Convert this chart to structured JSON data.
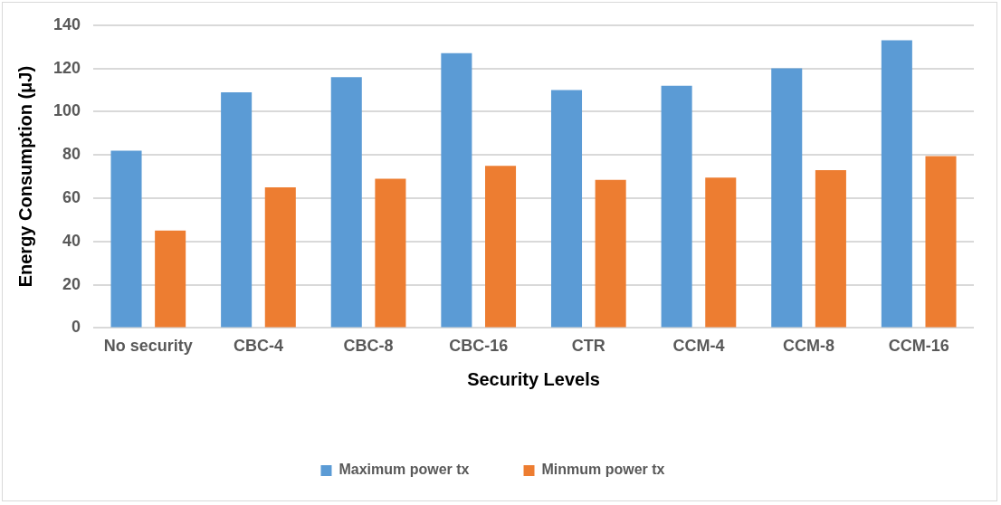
{
  "chart_data": {
    "type": "bar",
    "xlabel": "Security Levels",
    "ylabel": "Energy Consumption (μJ)",
    "categories": [
      "No security",
      "CBC-4",
      "CBC-8",
      "CBC-16",
      "CTR",
      "CCM-4",
      "CCM-8",
      "CCM-16"
    ],
    "series": [
      {
        "name": "Maximum power tx",
        "color": "#5b9bd5",
        "values": [
          82,
          109,
          116,
          127,
          110,
          112,
          120,
          133
        ]
      },
      {
        "name": "Minmum power tx",
        "color": "#ed7d31",
        "values": [
          45,
          65,
          69,
          75,
          68.5,
          69.5,
          73,
          79.5
        ]
      }
    ],
    "ylim": [
      0,
      140
    ],
    "yticks": [
      0,
      20,
      40,
      60,
      80,
      100,
      120,
      140
    ],
    "grid": "y",
    "legend": "bottom"
  }
}
